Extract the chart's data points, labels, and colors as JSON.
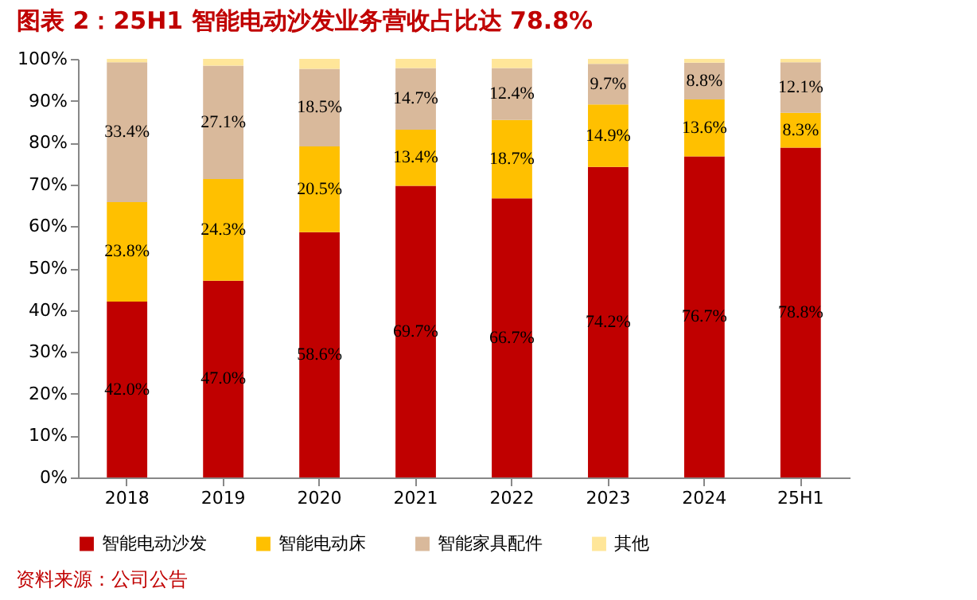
{
  "chart_data": {
    "type": "bar",
    "title": "图表 2：25H1 智能电动沙发业务营收占比达 78.8%",
    "stacked": true,
    "categories": [
      "2018",
      "2019",
      "2020",
      "2021",
      "2022",
      "2023",
      "2024",
      "25H1"
    ],
    "series": [
      {
        "name": "智能电动沙发",
        "color": "#c00000",
        "values": [
          42.0,
          47.0,
          58.6,
          69.7,
          66.7,
          74.2,
          76.7,
          78.8
        ],
        "value_labels": [
          "42.0%",
          "47.0%",
          "58.6%",
          "69.7%",
          "66.7%",
          "74.2%",
          "76.7%",
          "78.8%"
        ]
      },
      {
        "name": "智能电动床",
        "color": "#ffc000",
        "values": [
          23.8,
          24.3,
          20.5,
          13.4,
          18.7,
          14.9,
          13.6,
          8.3
        ],
        "value_labels": [
          "23.8%",
          "24.3%",
          "20.5%",
          "13.4%",
          "18.7%",
          "14.9%",
          "13.6%",
          "8.3%"
        ]
      },
      {
        "name": "智能家具配件",
        "color": "#d9b99b",
        "values": [
          33.4,
          27.1,
          18.5,
          14.7,
          12.4,
          9.7,
          8.8,
          12.1
        ],
        "value_labels": [
          "33.4%",
          "27.1%",
          "18.5%",
          "14.7%",
          "12.4%",
          "9.7%",
          "8.8%",
          "12.1%"
        ]
      },
      {
        "name": "其他",
        "color": "#ffe699",
        "values": [
          0.8,
          1.6,
          2.4,
          2.2,
          2.2,
          1.2,
          0.9,
          0.8
        ]
      }
    ],
    "ylim": [
      0,
      100
    ],
    "yticks": [
      {
        "value": 0,
        "label": "0%"
      },
      {
        "value": 10,
        "label": "10%"
      },
      {
        "value": 20,
        "label": "20%"
      },
      {
        "value": 30,
        "label": "30%"
      },
      {
        "value": 40,
        "label": "40%"
      },
      {
        "value": 50,
        "label": "50%"
      },
      {
        "value": 60,
        "label": "60%"
      },
      {
        "value": 70,
        "label": "70%"
      },
      {
        "value": 80,
        "label": "80%"
      },
      {
        "value": 90,
        "label": "90%"
      },
      {
        "value": 100,
        "label": "100%"
      }
    ],
    "legend": "bottom",
    "annotations": [
      "资料来源：公司公告"
    ]
  }
}
